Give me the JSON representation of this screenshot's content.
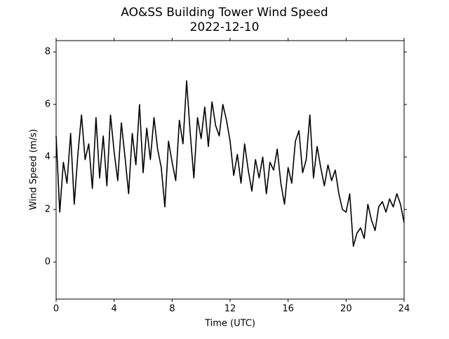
{
  "chart_data": {
    "type": "line",
    "title": "AO&SS Building Tower Wind Speed",
    "subtitle": "2022-12-10",
    "x_label": "Time (UTC)",
    "y_label": "Wind Speed (m/s)",
    "x": [
      0,
      0.25,
      0.5,
      0.75,
      1,
      1.25,
      1.5,
      1.75,
      2,
      2.25,
      2.5,
      2.75,
      3,
      3.25,
      3.5,
      3.75,
      4,
      4.25,
      4.5,
      4.75,
      5,
      5.25,
      5.5,
      5.75,
      6,
      6.25,
      6.5,
      6.75,
      7,
      7.25,
      7.5,
      7.75,
      8,
      8.25,
      8.5,
      8.75,
      9,
      9.25,
      9.5,
      9.75,
      10,
      10.25,
      10.5,
      10.75,
      11,
      11.25,
      11.5,
      11.75,
      12,
      12.25,
      12.5,
      12.75,
      13,
      13.25,
      13.5,
      13.75,
      14,
      14.25,
      14.5,
      14.75,
      15,
      15.25,
      15.5,
      15.75,
      16,
      16.25,
      16.5,
      16.75,
      17,
      17.25,
      17.5,
      17.75,
      18,
      18.25,
      18.5,
      18.75,
      19,
      19.25,
      19.5,
      19.75,
      20,
      20.25,
      20.5,
      20.75,
      21,
      21.25,
      21.5,
      21.75,
      22,
      22.25,
      22.5,
      22.75,
      23,
      23.25,
      23.5,
      23.75,
      24
    ],
    "series": [
      {
        "name": "Wind Speed",
        "color": "#000000",
        "values": [
          4.8,
          1.9,
          3.8,
          3.0,
          4.9,
          2.2,
          4.1,
          5.6,
          3.9,
          4.5,
          2.8,
          5.5,
          3.2,
          4.8,
          2.9,
          5.6,
          4.2,
          3.1,
          5.3,
          4.0,
          2.6,
          4.9,
          3.7,
          6.0,
          3.4,
          5.1,
          3.9,
          5.5,
          4.3,
          3.6,
          2.1,
          4.6,
          3.8,
          3.1,
          5.4,
          4.5,
          6.9,
          4.9,
          3.2,
          5.5,
          4.7,
          5.9,
          4.4,
          6.1,
          5.2,
          4.8,
          6.0,
          5.4,
          4.6,
          3.3,
          4.1,
          3.0,
          4.5,
          3.5,
          2.7,
          3.9,
          3.2,
          4.0,
          2.6,
          3.8,
          3.5,
          4.3,
          3.0,
          2.2,
          3.6,
          3.0,
          4.6,
          5.0,
          3.4,
          3.9,
          5.6,
          3.2,
          4.4,
          3.6,
          2.9,
          3.7,
          3.1,
          3.5,
          2.6,
          2.0,
          1.9,
          2.6,
          0.6,
          1.1,
          1.3,
          0.9,
          2.2,
          1.6,
          1.2,
          2.1,
          2.3,
          1.9,
          2.4,
          2.1,
          2.6,
          2.2,
          1.5
        ]
      }
    ],
    "xlim": [
      0,
      24
    ],
    "xticks": [
      0,
      4,
      8,
      12,
      16,
      20,
      24
    ],
    "ylim": [
      -1.41,
      8.43
    ],
    "yticks": [
      0,
      2,
      4,
      6,
      8
    ]
  }
}
